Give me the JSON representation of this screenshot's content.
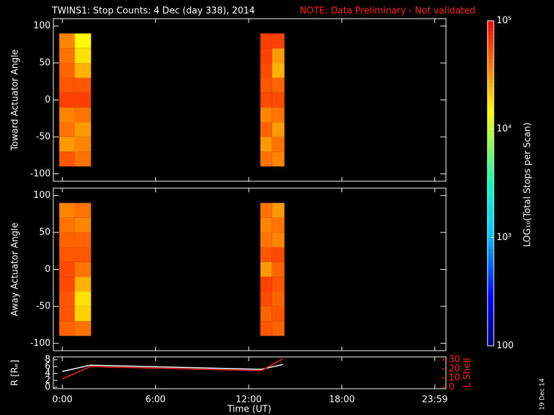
{
  "chart_data": {
    "type": "spectrogram",
    "title": "TWINS1: Stop Counts:  4 Dec (day 338), 2014",
    "note": "NOTE: Data Preliminary - Not validated",
    "note_color": "#ff2020",
    "xlabel": "Time (UT)",
    "xlim": [
      -0.58,
      24.7
    ],
    "xticks": [
      {
        "value": 0,
        "label": "0:00"
      },
      {
        "value": 6,
        "label": "6:00"
      },
      {
        "value": 12,
        "label": "12:00"
      },
      {
        "value": 18,
        "label": "18:00"
      },
      {
        "value": 23.98,
        "label": "23:59"
      }
    ],
    "angle_edges": [
      -90,
      -70,
      -50,
      -30,
      -10,
      10,
      30,
      50,
      70,
      90
    ],
    "zlabel": "LOG₁₀(Total Stops per Scan)",
    "zlim": [
      100,
      100000
    ],
    "zscale": "log",
    "zticks": [
      100,
      {
        "value": 1000,
        "label": "10³"
      },
      {
        "value": 10000,
        "label": "10⁴"
      },
      {
        "value": 100000,
        "label": "10⁵"
      }
    ],
    "panels": [
      {
        "ylabel": "Toward Actuator Angle",
        "ylim": [
          -110,
          110
        ],
        "yticks": [
          -100,
          -50,
          0,
          50,
          100
        ],
        "blocks": [
          {
            "x_edges": [
              -0.2,
              0.8,
              1.85
            ],
            "values": [
              [
                50000,
                30000,
                40000,
                35000,
                60000,
                50000,
                45000,
                40000,
                35000
              ],
              [
                40000,
                35000,
                30000,
                40000,
                60000,
                50000,
                25000,
                18000,
                15000
              ]
            ]
          },
          {
            "x_edges": [
              12.75,
              13.5,
              14.3
            ],
            "values": [
              [
                40000,
                30000,
                45000,
                35000,
                55000,
                50000,
                55000,
                60000,
                60000
              ],
              [
                35000,
                40000,
                30000,
                40000,
                55000,
                45000,
                25000,
                30000,
                60000
              ]
            ]
          }
        ]
      },
      {
        "ylabel": "Away Actuator Angle",
        "ylim": [
          -110,
          110
        ],
        "yticks": [
          -100,
          -50,
          0,
          50,
          100
        ],
        "blocks": [
          {
            "x_edges": [
              -0.2,
              0.8,
              1.85
            ],
            "values": [
              [
                45000,
                50000,
                50000,
                55000,
                55000,
                50000,
                45000,
                40000,
                35000
              ],
              [
                40000,
                20000,
                18000,
                25000,
                40000,
                50000,
                45000,
                35000,
                40000
              ]
            ]
          },
          {
            "x_edges": [
              12.75,
              13.5,
              14.3
            ],
            "values": [
              [
                50000,
                45000,
                55000,
                60000,
                30000,
                50000,
                40000,
                35000,
                40000
              ],
              [
                45000,
                50000,
                45000,
                50000,
                45000,
                55000,
                35000,
                40000,
                30000
              ]
            ]
          }
        ]
      }
    ],
    "orbit": {
      "x": [
        0,
        1.8,
        12.8,
        14.2
      ],
      "ylabel": "R [Rₑ]",
      "ylim": [
        -0.4,
        8.8
      ],
      "yticks": [
        0,
        2,
        4,
        6,
        8
      ],
      "y2label": "L Shell",
      "y2lim": [
        -1.5,
        33
      ],
      "y2ticks": [
        0,
        10,
        20,
        30
      ],
      "series": [
        {
          "name": "R",
          "color": "#ffffff",
          "values": [
            4.6,
            6.4,
            5.2,
            6.6
          ]
        },
        {
          "name": "L Shell",
          "color": "#ff2020",
          "axis": "y2",
          "values": [
            9,
            22.5,
            18,
            31
          ]
        }
      ]
    },
    "stamp": "19 Dec 14"
  }
}
